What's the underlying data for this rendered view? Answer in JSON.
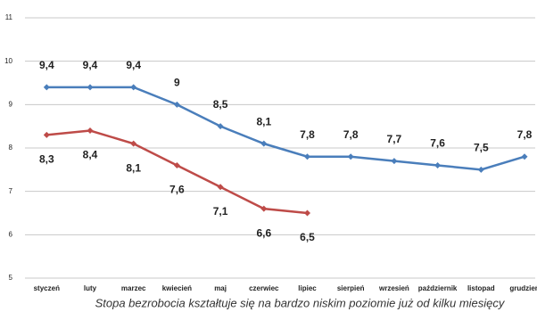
{
  "chart_data": {
    "type": "line",
    "caption": "Stopa bezrobocia kształtuje się na bardzo niskim poziomie już od kilku miesięcy",
    "categories": [
      "styczeń",
      "luty",
      "marzec",
      "kwiecień",
      "maj",
      "czerwiec",
      "lipiec",
      "sierpień",
      "wrzesień",
      "październik",
      "listopad",
      "grudzień"
    ],
    "series": [
      {
        "color": "#4a7ebb",
        "label_side": "above",
        "values": [
          9.4,
          9.4,
          9.4,
          9,
          8.5,
          8.1,
          7.8,
          7.8,
          7.7,
          7.6,
          7.5,
          7.8
        ],
        "value_labels": [
          "9,4",
          "9,4",
          "9,4",
          "9",
          "8,5",
          "8,1",
          "7,8",
          "7,8",
          "7,7",
          "7,6",
          "7,5",
          "7,8"
        ]
      },
      {
        "color": "#be4b48",
        "label_side": "below",
        "values": [
          8.3,
          8.4,
          8.1,
          7.6,
          7.1,
          6.6,
          6.5,
          null,
          null,
          null,
          null,
          null
        ],
        "value_labels": [
          "8,3",
          "8,4",
          "8,1",
          "7,6",
          "7,1",
          "6,6",
          "6,5",
          null,
          null,
          null,
          null,
          null
        ]
      }
    ],
    "ylim": [
      5,
      11
    ],
    "yticks": [
      5,
      6,
      7,
      8,
      9,
      10,
      11
    ],
    "grid": true
  }
}
